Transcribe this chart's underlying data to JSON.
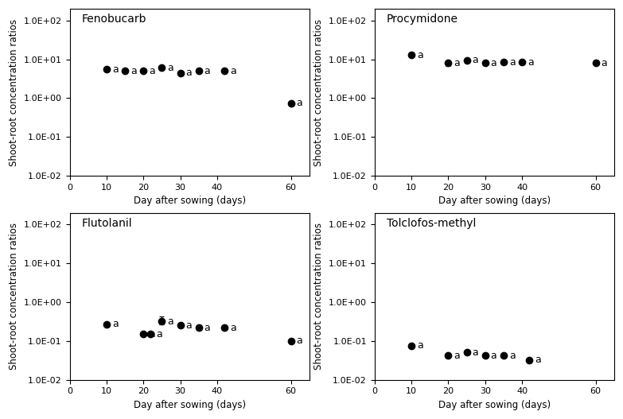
{
  "panels": [
    {
      "title": "Fenobucarb",
      "days": [
        10,
        15,
        20,
        25,
        30,
        35,
        42,
        60
      ],
      "values": [
        5.5,
        5.0,
        5.0,
        6.0,
        4.5,
        5.0,
        5.0,
        0.75
      ],
      "yerr_lo": [
        0.4,
        0.0,
        0.3,
        0.8,
        0.0,
        0.0,
        0.0,
        0.0
      ],
      "yerr_hi": [
        0.4,
        0.0,
        0.3,
        0.8,
        0.0,
        0.0,
        0.0,
        0.0
      ],
      "labels": [
        "a",
        "a",
        "a",
        "a",
        "a",
        "a",
        "a",
        "a"
      ]
    },
    {
      "title": "Procymidone",
      "days": [
        10,
        20,
        25,
        30,
        35,
        40,
        60
      ],
      "values": [
        13.0,
        8.0,
        9.5,
        8.0,
        8.5,
        8.5,
        8.0
      ],
      "yerr_lo": [
        1.5,
        1.2,
        1.0,
        0.0,
        0.0,
        0.0,
        0.0
      ],
      "yerr_hi": [
        1.5,
        1.2,
        1.5,
        0.0,
        0.0,
        0.0,
        0.0
      ],
      "labels": [
        "a",
        "a",
        "a",
        "a",
        "a",
        "a",
        "a"
      ]
    },
    {
      "title": "Flutolanil",
      "days": [
        10,
        20,
        22,
        25,
        30,
        35,
        42,
        60
      ],
      "values": [
        0.27,
        0.15,
        0.15,
        0.32,
        0.25,
        0.22,
        0.22,
        0.1
      ],
      "yerr_lo": [
        0.03,
        0.01,
        0.01,
        0.05,
        0.02,
        0.01,
        0.01,
        0.01
      ],
      "yerr_hi": [
        0.03,
        0.01,
        0.01,
        0.1,
        0.02,
        0.01,
        0.01,
        0.01
      ],
      "labels": [
        "a",
        "a",
        "a",
        "a",
        "a",
        "a",
        "a",
        "a"
      ]
    },
    {
      "title": "Tolclofos-methyl",
      "days": [
        10,
        20,
        25,
        30,
        35,
        42
      ],
      "values": [
        0.075,
        0.042,
        0.05,
        0.042,
        0.042,
        0.032
      ],
      "yerr_lo": [
        0.008,
        0.004,
        0.006,
        0.003,
        0.003,
        0.003
      ],
      "yerr_hi": [
        0.008,
        0.004,
        0.01,
        0.003,
        0.003,
        0.003
      ],
      "labels": [
        "a",
        "a",
        "a",
        "a",
        "a",
        "a"
      ]
    }
  ],
  "xlabel": "Day after sowing (days)",
  "ylabel": "Shoot-root concentration ratios",
  "xlim": [
    0,
    65
  ],
  "xticks": [
    0,
    10,
    20,
    30,
    40,
    60
  ],
  "ylim_log": [
    0.01,
    200
  ],
  "ytick_vals": [
    0.01,
    0.1,
    1.0,
    10.0,
    100.0
  ],
  "ytick_labels": [
    "1.0E-02",
    "1.0E-01",
    "1.0E+00",
    "1.0E+01",
    "1.0E+02"
  ],
  "marker_color": "black",
  "marker_size": 6,
  "label_fontsize": 9,
  "title_fontsize": 10,
  "axis_fontsize": 8.5,
  "tick_fontsize": 8
}
